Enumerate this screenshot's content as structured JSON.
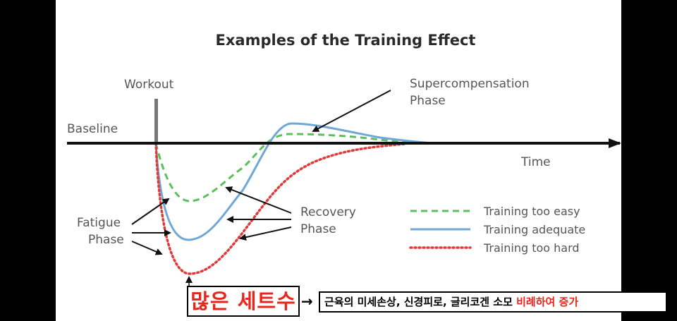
{
  "diagram": {
    "title": "Examples of the Training Effect",
    "workout_label": "Workout",
    "baseline_label": "Baseline",
    "time_label": "Time",
    "supercompensation_label": [
      "Supercompensation",
      "Phase"
    ],
    "fatigue_label": [
      "Fatigue",
      "Phase"
    ],
    "recovery_label": [
      "Recovery",
      "Phase"
    ],
    "legend": [
      {
        "label": "Training too easy",
        "style": "dashed",
        "color": "#5cc15a"
      },
      {
        "label": "Training adequate",
        "style": "solid",
        "color": "#6fa8d6"
      },
      {
        "label": "Training too hard",
        "style": "dotted",
        "color": "#e03a3a"
      }
    ],
    "colors": {
      "axis": "#111111",
      "workout_bar": "#777777",
      "text": "#555555"
    }
  },
  "annotation": {
    "big_label": "많은 세트수",
    "arrow": "→",
    "detail_prefix": "근육의 미세손상, 신경피로, 글리코겐 소모 ",
    "detail_highlight": "비례하여 증가",
    "highlight_color": "#e8261b"
  }
}
